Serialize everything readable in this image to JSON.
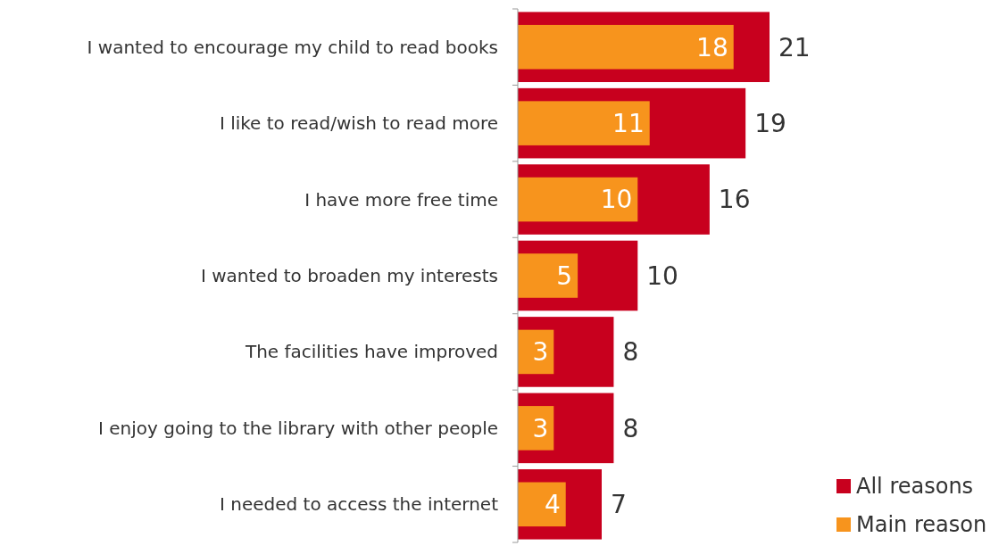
{
  "chart_data": {
    "type": "bar",
    "orientation": "horizontal",
    "categories": [
      "I wanted to encourage my child to read books",
      "I like to read/wish to read more",
      "I have more free time",
      "I wanted to broaden my interests",
      "The facilities have improved",
      "I enjoy going to the library with other people",
      "I needed to access the internet"
    ],
    "series": [
      {
        "name": "All reasons",
        "color": "#c8001e",
        "values": [
          21,
          19,
          16,
          10,
          8,
          8,
          7
        ]
      },
      {
        "name": "Main reason",
        "color": "#f7941d",
        "values": [
          18,
          11,
          10,
          5,
          3,
          3,
          4
        ]
      }
    ],
    "data_labels": true,
    "legend": "bottom right"
  }
}
